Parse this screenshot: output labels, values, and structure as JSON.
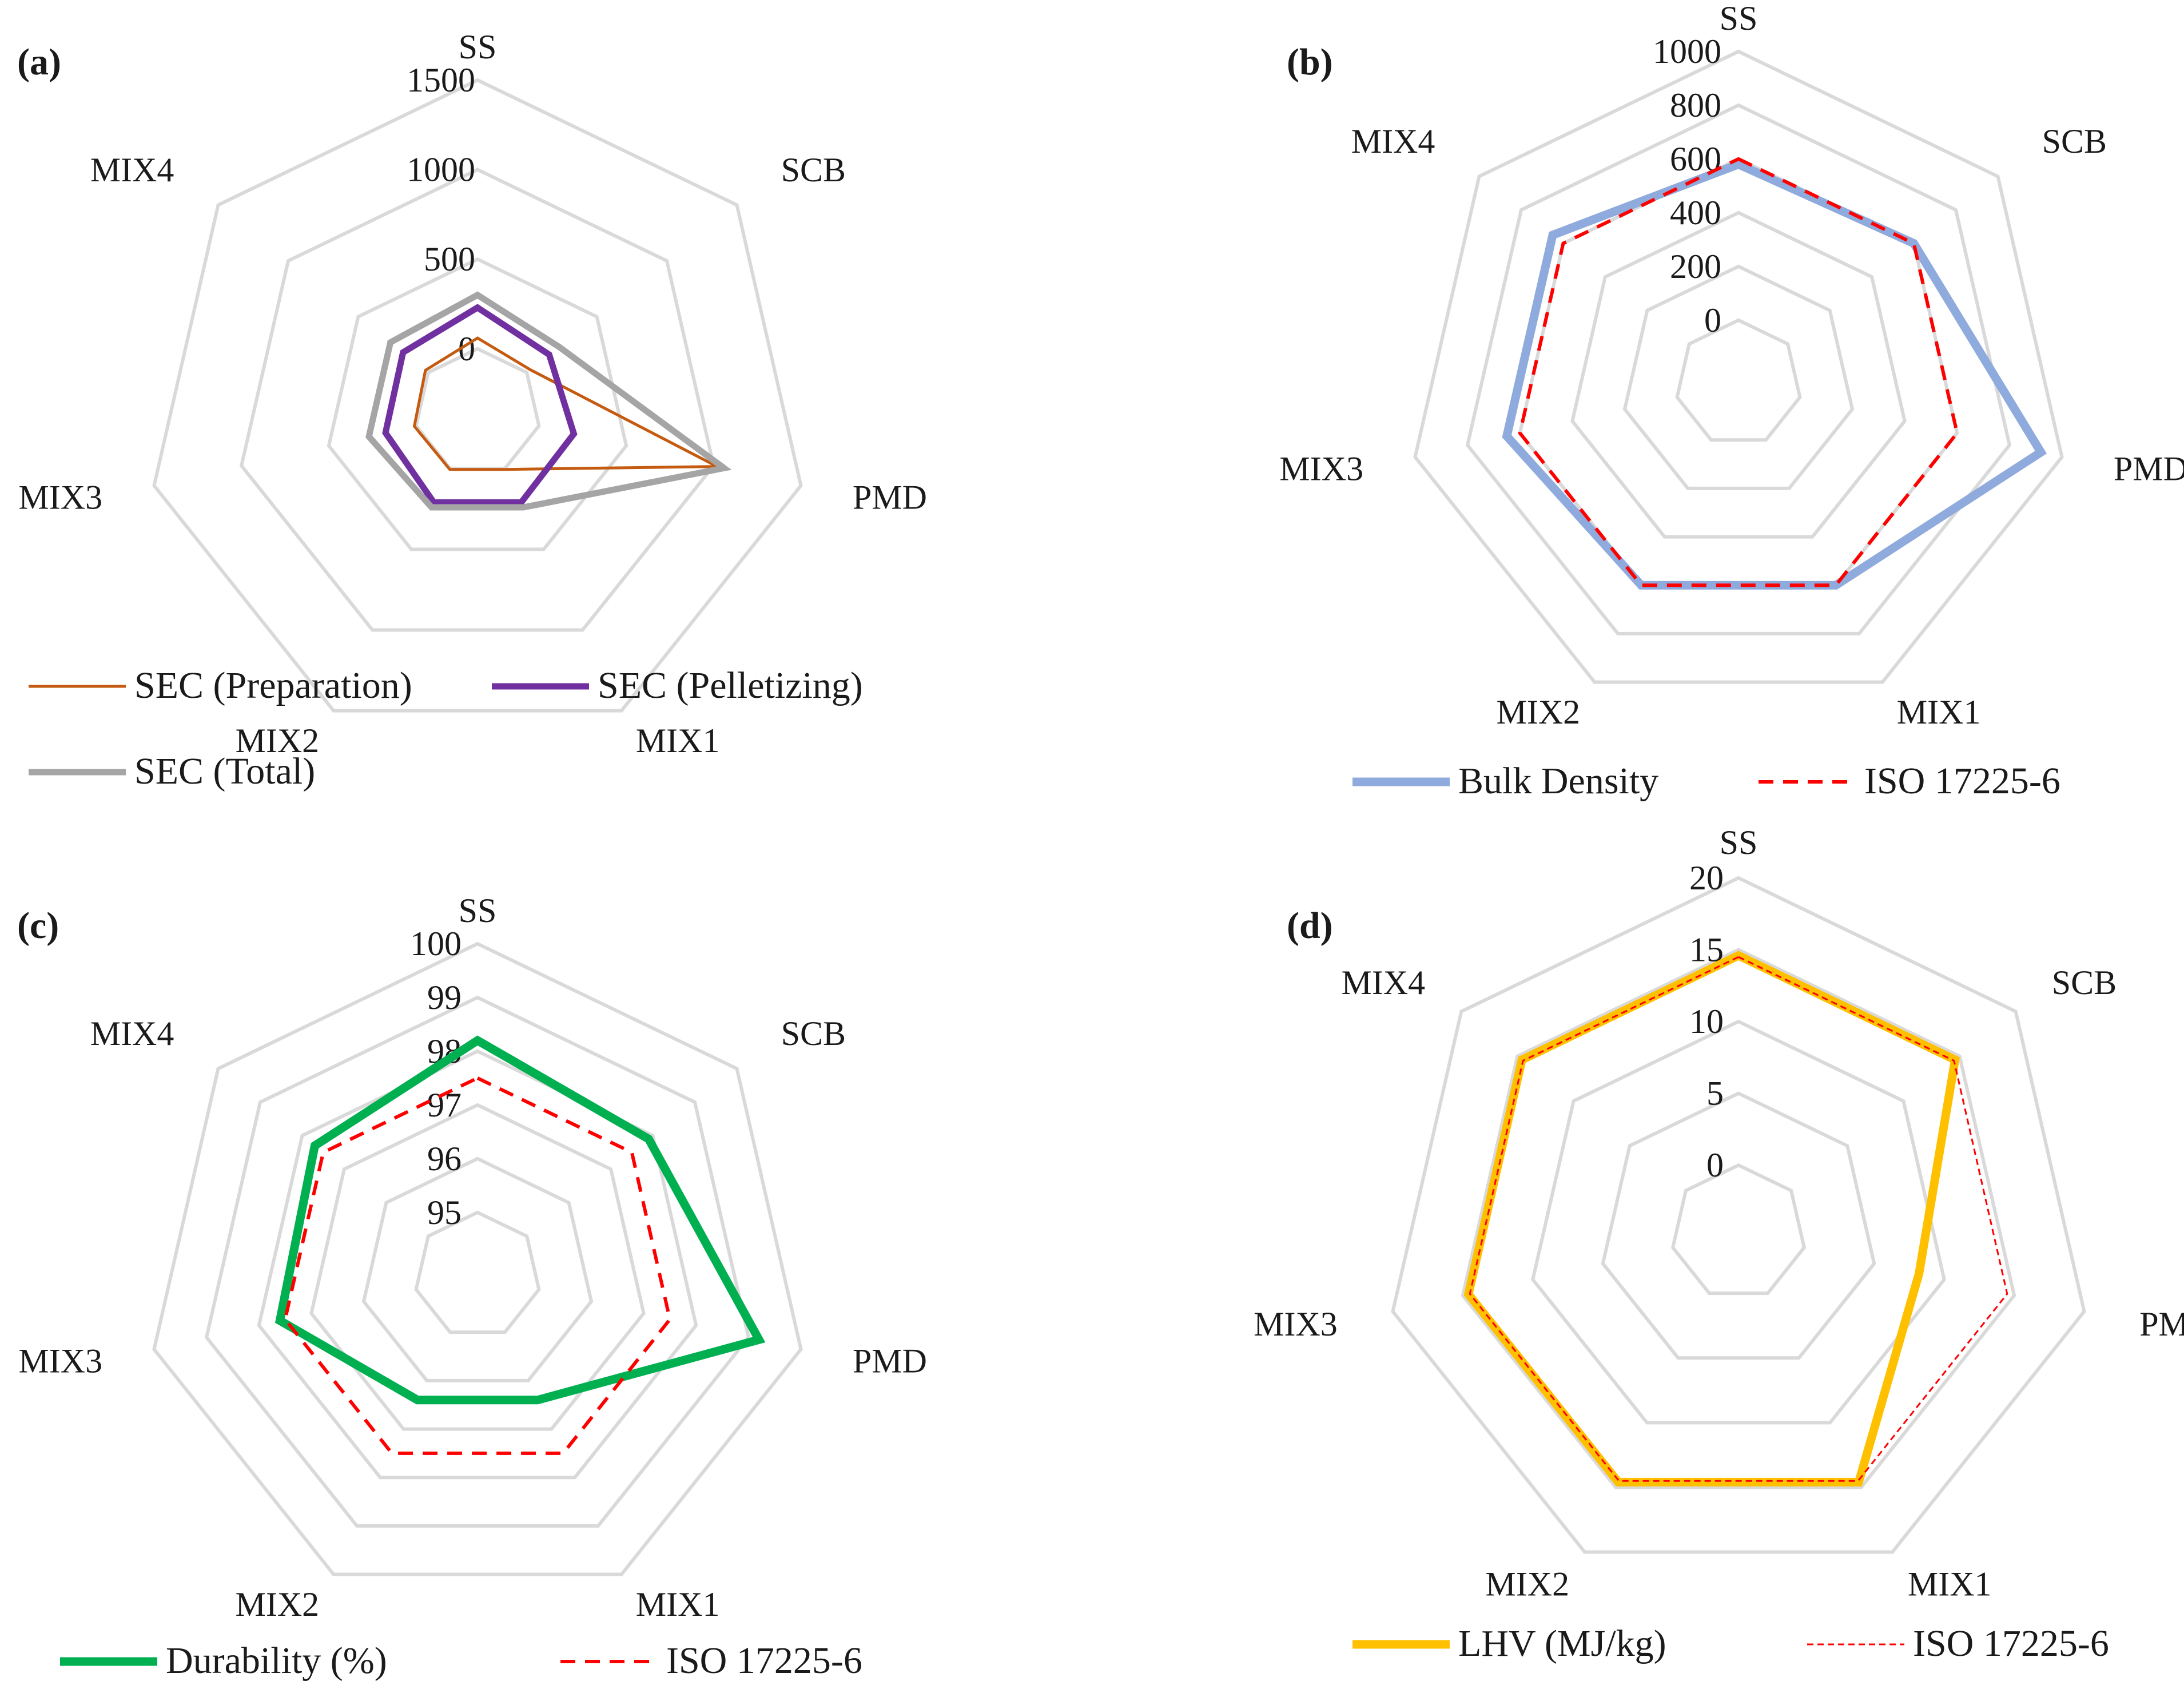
{
  "chart_data": [
    {
      "panel": "(a)",
      "type": "radar",
      "categories": [
        "SS",
        "SCB",
        "PMD",
        "MIX1",
        "MIX2",
        "MIX3",
        "MIX4"
      ],
      "rlim": [
        0,
        1500
      ],
      "ticks": [
        0,
        500,
        1000,
        1500
      ],
      "tick_labels": [
        "0",
        "500",
        "1000",
        "1500"
      ],
      "series": [
        {
          "name": "SEC (Preparation)",
          "values": [
            60,
            25,
            1020,
            5,
            5,
            10,
            20
          ],
          "color": "#c55a11",
          "width": 5,
          "dash": ""
        },
        {
          "name": "SEC (Pelletizing)",
          "values": [
            230,
            160,
            200,
            210,
            210,
            175,
            180
          ],
          "color": "#7030a0",
          "width": 11,
          "dash": ""
        },
        {
          "name": "SEC (Total)",
          "values": [
            300,
            230,
            1060,
            240,
            240,
            270,
            270
          ],
          "color": "#a5a5a5",
          "width": 11,
          "dash": ""
        }
      ]
    },
    {
      "panel": "(b)",
      "type": "radar",
      "categories": [
        "SS",
        "SCB",
        "PMD",
        "MIX1",
        "MIX2",
        "MIX3",
        "MIX4"
      ],
      "rlim": [
        0,
        1000
      ],
      "ticks": [
        0,
        200,
        400,
        600,
        800,
        1000
      ],
      "tick_labels": [
        "0",
        "200",
        "400",
        "600",
        "800",
        "1000"
      ],
      "series": [
        {
          "name": "Bulk Density",
          "values": [
            580,
            600,
            920,
            600,
            600,
            650,
            650
          ],
          "color": "#8faadc",
          "width": 15,
          "dash": ""
        },
        {
          "name": "ISO 17225-6",
          "values": [
            600,
            600,
            600,
            600,
            600,
            600,
            600
          ],
          "color": "#ff0000",
          "width": 6,
          "dash": "26 17"
        }
      ]
    },
    {
      "panel": "(c)",
      "type": "radar",
      "categories": [
        "SS",
        "SCB",
        "PMD",
        "MIX1",
        "MIX2",
        "MIX3",
        "MIX4"
      ],
      "rlim": [
        95,
        100
      ],
      "ticks": [
        95,
        96,
        97,
        98,
        99,
        100
      ],
      "tick_labels": [
        "95",
        "96",
        "97",
        "98",
        "99",
        "100"
      ],
      "series": [
        {
          "name": "Durability (%)",
          "values": [
            98.2,
            97.9,
            99.2,
            96.4,
            96.4,
            97.6,
            97.7
          ],
          "color": "#00b050",
          "width": 15,
          "dash": ""
        },
        {
          "name": "ISO 17225-6",
          "values": [
            97.5,
            97.5,
            97.5,
            97.5,
            97.5,
            97.5,
            97.5
          ],
          "color": "#ff0000",
          "width": 6,
          "dash": "26 17"
        }
      ]
    },
    {
      "panel": "(d)",
      "type": "radar",
      "categories": [
        "SS",
        "SCB",
        "PMD",
        "MIX1",
        "MIX2",
        "MIX3",
        "MIX4"
      ],
      "rlim": [
        0,
        20
      ],
      "ticks": [
        0,
        5,
        10,
        15,
        20
      ],
      "tick_labels": [
        "0",
        "5",
        "10",
        "15",
        "20"
      ],
      "series": [
        {
          "name": "LHV (MJ/kg)",
          "values": [
            14.6,
            14.6,
            8.2,
            14.6,
            14.6,
            14.6,
            14.6
          ],
          "color": "#ffc000",
          "width": 15,
          "dash": ""
        },
        {
          "name": "ISO 17225-6",
          "values": [
            14.5,
            14.5,
            14.5,
            14.5,
            14.5,
            14.5,
            14.5
          ],
          "color": "#ff0000",
          "width": 3,
          "dash": "11 7"
        }
      ]
    }
  ]
}
